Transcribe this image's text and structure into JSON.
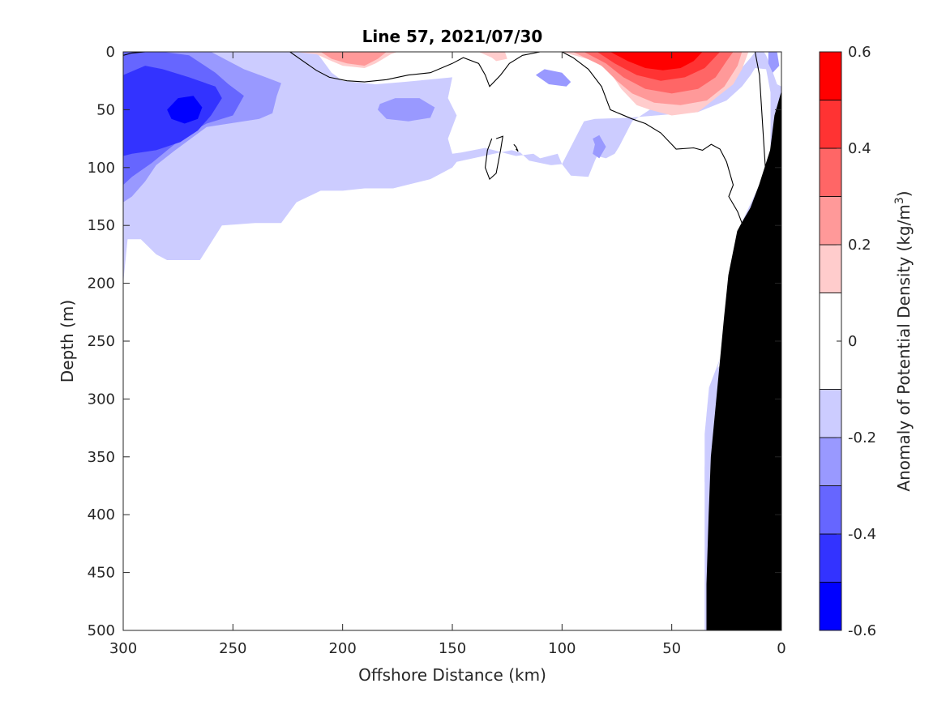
{
  "chart_data": {
    "type": "heatmap",
    "subtype": "filled-contour-section",
    "title": "Line 57, 2021/07/30",
    "xlabel": "Offshore Distance (km)",
    "ylabel": "Depth (m)",
    "xlim": [
      300,
      0
    ],
    "ylim": [
      500,
      0
    ],
    "x_direction": "reversed",
    "y_direction": "reversed (depth increases downward)",
    "xticks": [
      300,
      250,
      200,
      150,
      100,
      50,
      0
    ],
    "yticks": [
      0,
      50,
      100,
      150,
      200,
      250,
      300,
      350,
      400,
      450,
      500
    ],
    "grid": false,
    "colorbar": {
      "label": "Anomaly of Potential Density (kg/m³)",
      "label_text": "Anomaly of Potential Density (kg/m",
      "label_sup": "3",
      "label_close": ")",
      "range": [
        -0.6,
        0.6
      ],
      "ticks": [
        -0.6,
        -0.4,
        -0.2,
        0,
        0.2,
        0.4,
        0.6
      ],
      "tick_labels": [
        "-0.6",
        "-0.4",
        "-0.2",
        "0",
        "0.2",
        "0.4",
        "0.6"
      ],
      "levels": [
        -0.6,
        -0.5,
        -0.4,
        -0.3,
        -0.2,
        -0.1,
        0.1,
        0.2,
        0.3,
        0.4,
        0.5,
        0.6
      ],
      "colors": [
        "#0000ff",
        "#3333ff",
        "#6666ff",
        "#9999ff",
        "#ccccff",
        "#ffffff",
        "#ffcccc",
        "#ff9999",
        "#ff6666",
        "#ff3333",
        "#ff0000"
      ]
    },
    "zero_contour_color": "#000000",
    "bathymetry_color": "#000000",
    "features": [
      {
        "name": "negative anomaly core",
        "x_km": 272,
        "depth_m": 55,
        "min_value": -0.55
      },
      {
        "name": "positive anomaly core",
        "x_km": 55,
        "depth_m": 5,
        "max_value": 0.55
      },
      {
        "name": "shelf/slope seafloor",
        "depth_at_0km": 35,
        "depth_at_20km": 150,
        "depth_at_34km": 500
      }
    ]
  }
}
